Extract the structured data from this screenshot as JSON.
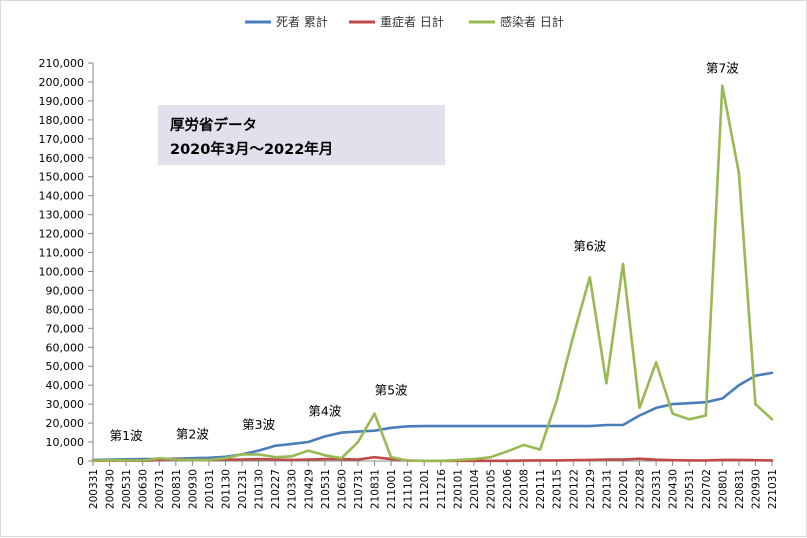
{
  "note": {
    "line1": "厚労省データ",
    "line2": "2020年3月～2022年月"
  },
  "chart_data": {
    "type": "line",
    "title": "",
    "xlabel": "",
    "ylabel": "",
    "ylim": [
      0,
      210000
    ],
    "y_ticks": [
      "0",
      "10,000",
      "20,000",
      "30,000",
      "40,000",
      "50,000",
      "60,000",
      "70,000",
      "80,000",
      "90,000",
      "100,000",
      "110,000",
      "120,000",
      "130,000",
      "140,000",
      "150,000",
      "160,000",
      "170,000",
      "180,000",
      "190,000",
      "200,000",
      "210,000"
    ],
    "grid": false,
    "legend_position": "top",
    "categories": [
      "200331",
      "200430",
      "200531",
      "200630",
      "200731",
      "200831",
      "200930",
      "201031",
      "201130",
      "201231",
      "210130",
      "210227",
      "210330",
      "210429",
      "210531",
      "210630",
      "210731",
      "210831",
      "211001",
      "211101",
      "211201",
      "211216",
      "220101",
      "220104",
      "220105",
      "220106",
      "220108",
      "220111",
      "220115",
      "220122",
      "220129",
      "220131",
      "220201",
      "220228",
      "220331",
      "220430",
      "220531",
      "220702",
      "220801",
      "220831",
      "220930",
      "221031"
    ],
    "series": [
      {
        "name": "死者 累計",
        "color": "#4a7ebb",
        "values": [
          500,
          800,
          900,
          1000,
          1000,
          1200,
          1500,
          1700,
          2200,
          3500,
          5500,
          8000,
          9000,
          10000,
          13000,
          15000,
          15500,
          16000,
          17500,
          18300,
          18400,
          18400,
          18400,
          18400,
          18400,
          18400,
          18400,
          18400,
          18400,
          18400,
          18400,
          19000,
          19000,
          24000,
          28000,
          30000,
          30500,
          31000,
          33000,
          40000,
          45000,
          46500
        ]
      },
      {
        "name": "重症者 日計",
        "color": "#be4b48",
        "values": [
          100,
          300,
          200,
          100,
          600,
          1000,
          600,
          600,
          700,
          800,
          1000,
          800,
          600,
          800,
          1000,
          1000,
          800,
          2000,
          1000,
          200,
          100,
          100,
          100,
          100,
          100,
          100,
          200,
          300,
          300,
          400,
          600,
          800,
          800,
          1200,
          700,
          400,
          300,
          300,
          600,
          600,
          400,
          300
        ]
      },
      {
        "name": "感染者 日計",
        "color": "#98b954",
        "values": [
          100,
          500,
          300,
          200,
          1500,
          800,
          600,
          600,
          1500,
          3500,
          3500,
          2000,
          2500,
          5500,
          3000,
          1500,
          10000,
          25000,
          2000,
          200,
          100,
          100,
          500,
          1000,
          2000,
          5000,
          8500,
          6000,
          32000,
          66000,
          97000,
          41000,
          104000,
          28000,
          52000,
          25000,
          22000,
          24000,
          198000,
          152000,
          30000,
          22000
        ]
      }
    ],
    "annotations": [
      {
        "text": "第1波",
        "x": "200531",
        "y": 11000
      },
      {
        "text": "第2波",
        "x": "200930",
        "y": 12000
      },
      {
        "text": "第3波",
        "x": "210130",
        "y": 17000
      },
      {
        "text": "第4波",
        "x": "210531",
        "y": 24000
      },
      {
        "text": "第5波",
        "x": "211001",
        "y": 35000
      },
      {
        "text": "第6波",
        "x": "220129",
        "y": 111000
      },
      {
        "text": "第7波",
        "x": "220801",
        "y": 205000
      }
    ]
  }
}
